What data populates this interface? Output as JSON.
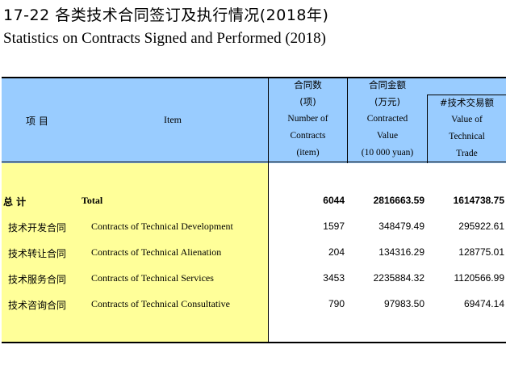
{
  "title_cn": "17-22   各类技术合同签订及执行情况(2018年)",
  "title_en": "Statistics on Contracts Signed and Performed (2018)",
  "header": {
    "item_cn": "项  目",
    "item_en": "Item",
    "contracts": [
      "合同数",
      "(项)",
      "Number of",
      "Contracts",
      "(item)"
    ],
    "value": [
      "合同金额",
      "(万元)",
      "Contracted",
      "Value",
      "(10 000 yuan)"
    ],
    "trade": [
      "#技术交易额",
      "Value of",
      "Technical",
      "Trade"
    ]
  },
  "rows": [
    {
      "cn": "总  计",
      "en": "Total",
      "contracts": "6044",
      "value": "2816663.59",
      "trade": "1614738.75"
    },
    {
      "cn": "技术开发合同",
      "en": "Contracts of Technical Development",
      "contracts": "1597",
      "value": "348479.49",
      "trade": "295922.61"
    },
    {
      "cn": "技术转让合同",
      "en": "Contracts of Technical Alienation",
      "contracts": "204",
      "value": "134316.29",
      "trade": "128775.01"
    },
    {
      "cn": "技术服务合同",
      "en": "Contracts of Technical Services",
      "contracts": "3453",
      "value": "2235884.32",
      "trade": "1120566.99"
    },
    {
      "cn": "技术咨询合同",
      "en": "Contracts of Technical Consultative",
      "contracts": "790",
      "value": "97983.50",
      "trade": "69474.14"
    }
  ]
}
